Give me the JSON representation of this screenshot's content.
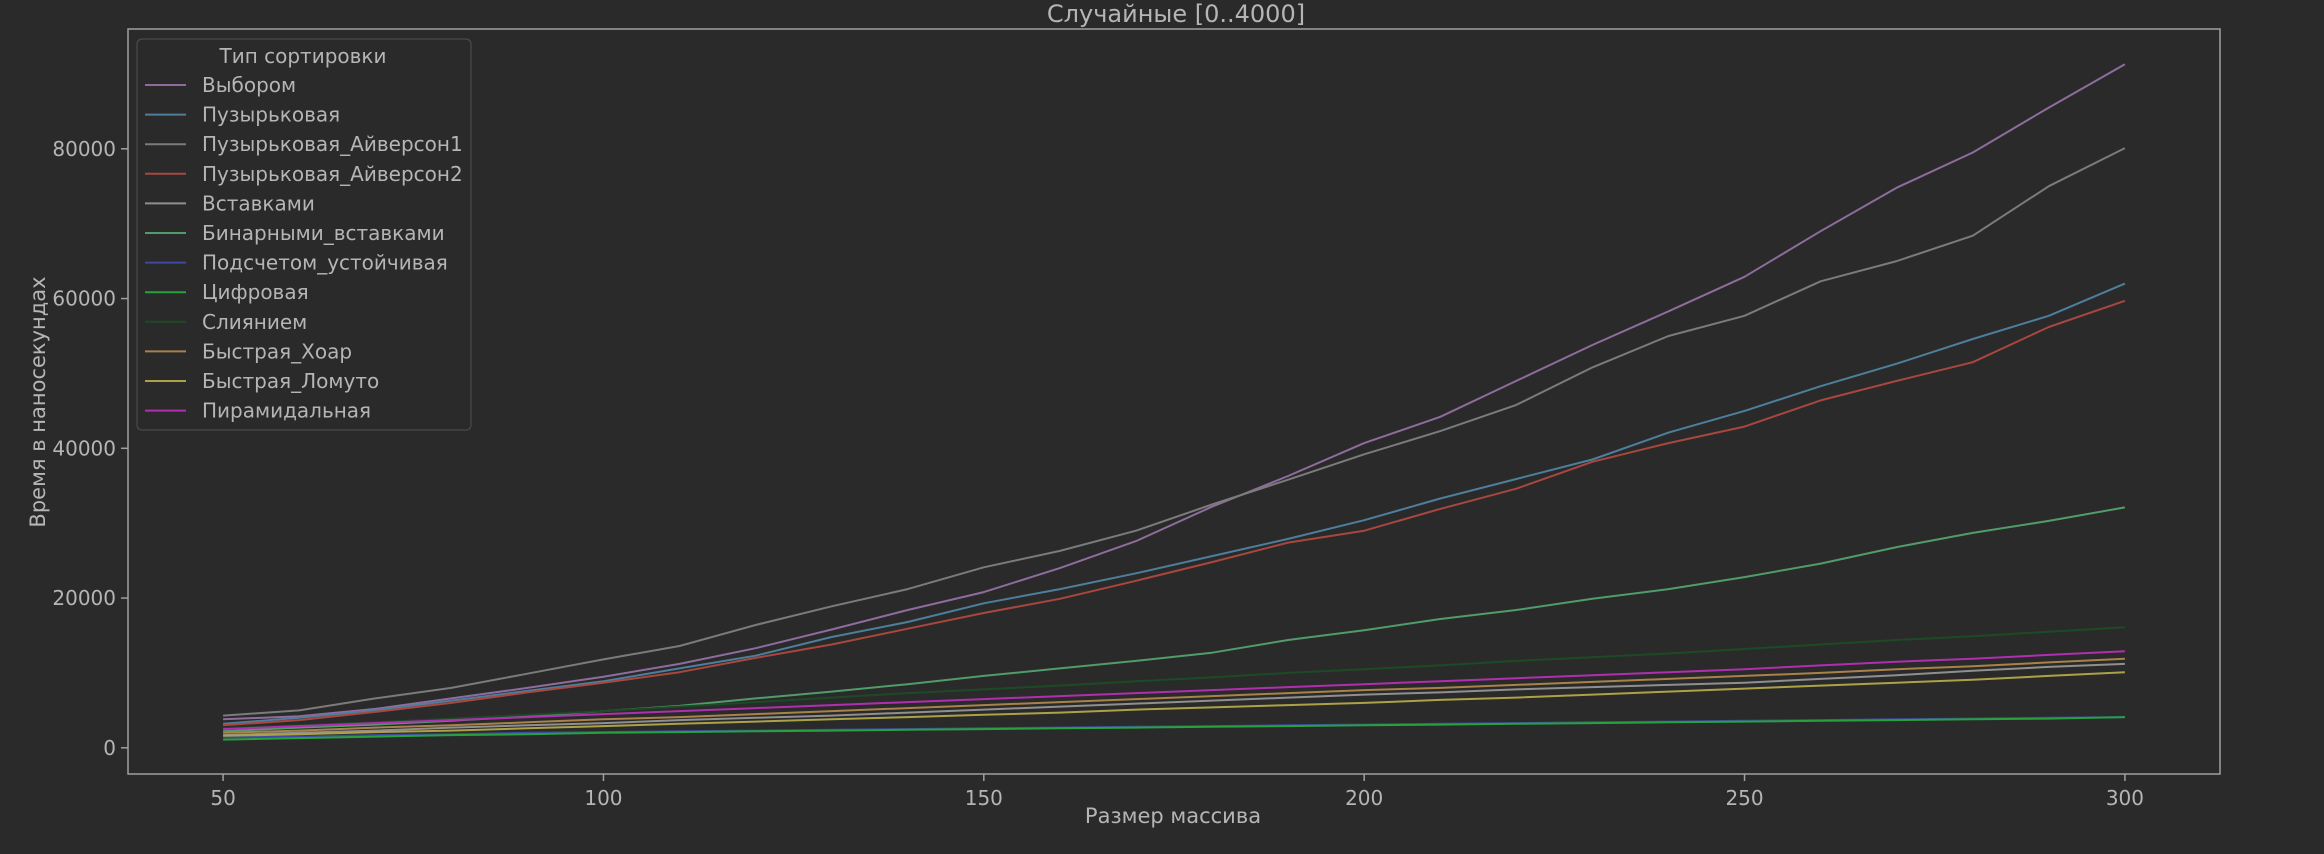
{
  "chart_data": {
    "type": "line",
    "title": "Случайные [0..4000]",
    "xlabel": "Размер массива",
    "ylabel": "Время в наносекундах",
    "xlim": [
      37.5,
      312.5
    ],
    "ylim": [
      -3500,
      96000
    ],
    "xticks": [
      50,
      100,
      150,
      200,
      250,
      300
    ],
    "yticks": [
      0,
      20000,
      40000,
      60000,
      80000
    ],
    "grid": false,
    "legend": {
      "title": "Тип сортировки",
      "placement": "top-left"
    },
    "x": [
      50,
      60,
      70,
      80,
      90,
      100,
      110,
      120,
      130,
      140,
      150,
      160,
      170,
      180,
      190,
      200,
      210,
      220,
      230,
      240,
      250,
      260,
      270,
      280,
      290,
      300
    ],
    "series": [
      {
        "name": "Выбором",
        "color": "#8e6c9e",
        "values": [
          3800,
          4200,
          5200,
          6600,
          8000,
          9500,
          11200,
          13300,
          15800,
          18400,
          20800,
          24000,
          27600,
          32200,
          36300,
          40700,
          44200,
          49000,
          53800,
          58300,
          62900,
          69000,
          74800,
          79500,
          85500,
          91300
        ]
      },
      {
        "name": "Пузырьковая",
        "color": "#4d7f9c",
        "values": [
          3200,
          4000,
          5000,
          6300,
          7600,
          8900,
          10600,
          12300,
          14800,
          16800,
          19300,
          21200,
          23300,
          25600,
          27900,
          30400,
          33300,
          35900,
          38500,
          42100,
          45000,
          48300,
          51300,
          54600,
          57700,
          62000
        ]
      },
      {
        "name": "Пузырьковая_Айверсон1",
        "color": "#7b7b7b",
        "values": [
          4300,
          5000,
          6600,
          8000,
          9900,
          11800,
          13600,
          16400,
          18900,
          21200,
          24100,
          26300,
          29000,
          32500,
          35800,
          39200,
          42300,
          45800,
          50800,
          55000,
          57700,
          62300,
          65000,
          68400,
          75000,
          80100
        ]
      },
      {
        "name": "Пузырьковая_Айверсон2",
        "color": "#a8473f",
        "values": [
          3000,
          3700,
          4800,
          6000,
          7400,
          8700,
          10100,
          12000,
          13800,
          15900,
          18000,
          19900,
          22300,
          24800,
          27400,
          29000,
          31900,
          34600,
          38200,
          40700,
          42900,
          46400,
          49000,
          51500,
          56200,
          59700
        ]
      },
      {
        "name": "Вставками",
        "color": "#8f8f8f",
        "values": [
          1700,
          2000,
          2300,
          2700,
          3000,
          3300,
          3700,
          4000,
          4300,
          4700,
          5100,
          5500,
          5900,
          6300,
          6700,
          7100,
          7400,
          7800,
          8100,
          8400,
          8700,
          9200,
          9700,
          10300,
          10800,
          11200
        ]
      },
      {
        "name": "Бинарными_вставками",
        "color": "#529b6a",
        "values": [
          2200,
          2700,
          3100,
          3600,
          4200,
          4900,
          5600,
          6600,
          7500,
          8500,
          9600,
          10600,
          11600,
          12700,
          14400,
          15700,
          17200,
          18400,
          19900,
          21200,
          22800,
          24600,
          26800,
          28700,
          30300,
          32100
        ]
      },
      {
        "name": "Подсчетом_устойчивая",
        "color": "#3f48a2",
        "values": [
          1400,
          1500,
          1700,
          1800,
          2000,
          2100,
          2200,
          2300,
          2400,
          2500,
          2600,
          2700,
          2800,
          2900,
          3000,
          3100,
          3200,
          3300,
          3400,
          3500,
          3600,
          3700,
          3800,
          3900,
          4000,
          4100
        ]
      },
      {
        "name": "Цифровая",
        "color": "#27a13e",
        "values": [
          1100,
          1300,
          1500,
          1700,
          1800,
          2000,
          2100,
          2200,
          2300,
          2400,
          2500,
          2600,
          2700,
          2800,
          2900,
          3000,
          3100,
          3200,
          3300,
          3400,
          3500,
          3600,
          3700,
          3800,
          3900,
          4100
        ]
      },
      {
        "name": "Слиянием",
        "color": "#1c4a25",
        "values": [
          2600,
          3000,
          3400,
          3900,
          4400,
          4900,
          5500,
          6100,
          6700,
          7300,
          7800,
          8300,
          8900,
          9400,
          10000,
          10500,
          11000,
          11600,
          12100,
          12600,
          13200,
          13800,
          14400,
          14900,
          15500,
          16100
        ]
      },
      {
        "name": "Быстрая_Хоар",
        "color": "#a8824a",
        "values": [
          2000,
          2300,
          2700,
          3000,
          3400,
          3800,
          4100,
          4500,
          4900,
          5300,
          5700,
          6100,
          6500,
          6900,
          7300,
          7700,
          8000,
          8400,
          8800,
          9200,
          9600,
          10000,
          10500,
          10900,
          11400,
          11900
        ]
      },
      {
        "name": "Быстрая_Ломуто",
        "color": "#aba247",
        "values": [
          1600,
          1800,
          2100,
          2300,
          2600,
          2900,
          3200,
          3500,
          3800,
          4100,
          4400,
          4700,
          5100,
          5400,
          5700,
          6000,
          6400,
          6700,
          7100,
          7500,
          7900,
          8300,
          8700,
          9100,
          9600,
          10100
        ]
      },
      {
        "name": "Пирамидальная",
        "color": "#b02fb0",
        "values": [
          2500,
          2900,
          3300,
          3700,
          4100,
          4500,
          4900,
          5300,
          5700,
          6100,
          6500,
          6900,
          7300,
          7700,
          8100,
          8500,
          8900,
          9300,
          9700,
          10100,
          10500,
          11000,
          11500,
          11900,
          12400,
          12900
        ]
      }
    ]
  }
}
